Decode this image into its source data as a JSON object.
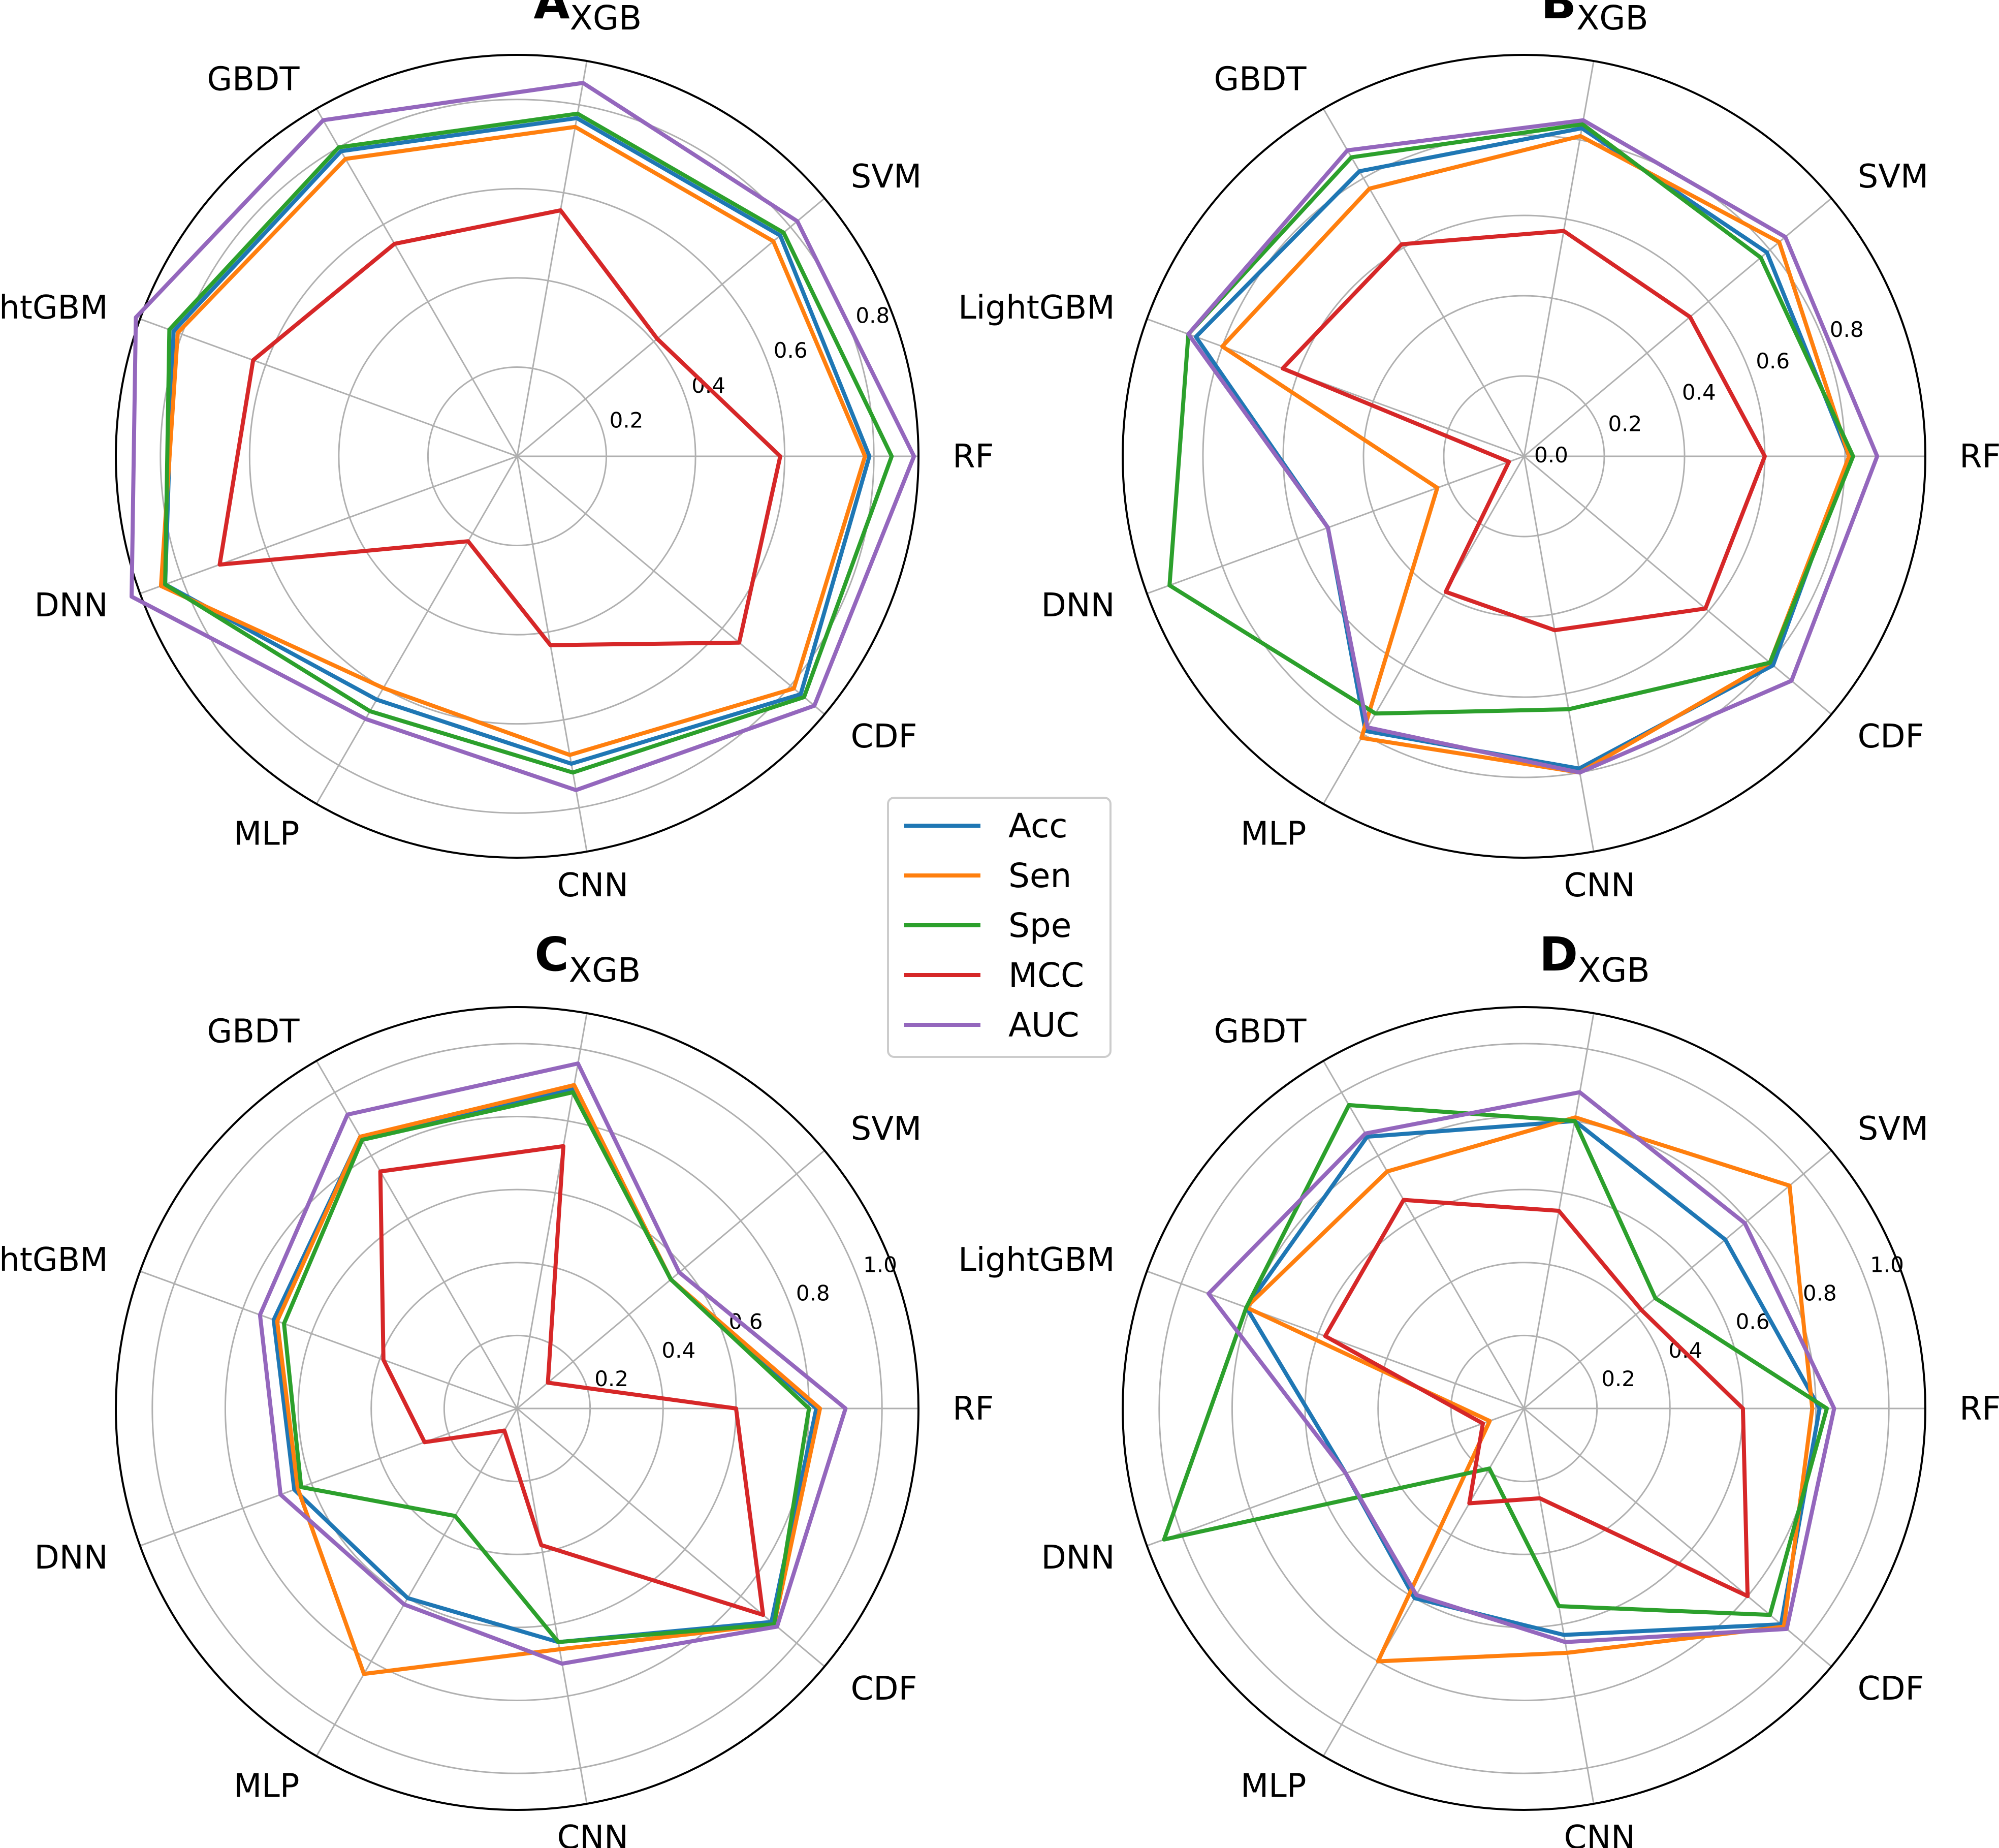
{
  "legend": [
    {
      "key": "Acc",
      "label": "Acc",
      "color": "#1f77b4"
    },
    {
      "key": "Sen",
      "label": "Sen",
      "color": "#ff7f0e"
    },
    {
      "key": "Spe",
      "label": "Spe",
      "color": "#2ca02c"
    },
    {
      "key": "MCC",
      "label": "MCC",
      "color": "#d62728"
    },
    {
      "key": "AUC",
      "label": "AUC",
      "color": "#9467bd"
    }
  ],
  "chart_data": [
    {
      "type": "radar",
      "title_letter": "A",
      "title_sub": "XGB",
      "axes": [
        "RF",
        "SVM",
        "XGB",
        "GBDT",
        "LightGBM",
        "DNN",
        "MLP",
        "CNN",
        "CDF"
      ],
      "rmin": 0.0,
      "rmax": 0.9,
      "rticks": [
        0.2,
        0.4,
        0.6,
        0.8
      ],
      "series": [
        {
          "name": "Acc",
          "values": [
            0.79,
            0.77,
            0.77,
            0.79,
            0.82,
            0.84,
            0.63,
            0.7,
            0.83
          ]
        },
        {
          "name": "Sen",
          "values": [
            0.78,
            0.75,
            0.75,
            0.77,
            0.81,
            0.85,
            0.6,
            0.68,
            0.81
          ]
        },
        {
          "name": "Spe",
          "values": [
            0.84,
            0.78,
            0.78,
            0.8,
            0.83,
            0.84,
            0.66,
            0.72,
            0.84
          ]
        },
        {
          "name": "MCC",
          "values": [
            0.59,
            0.41,
            0.56,
            0.55,
            0.63,
            0.71,
            0.22,
            0.43,
            0.65
          ]
        },
        {
          "name": "AUC",
          "values": [
            0.89,
            0.82,
            0.85,
            0.87,
            0.91,
            0.92,
            0.68,
            0.76,
            0.87
          ]
        }
      ]
    },
    {
      "type": "radar",
      "title_letter": "B",
      "title_sub": "XGB",
      "axes": [
        "RF",
        "SVM",
        "XGB",
        "GBDT",
        "LightGBM",
        "DNN",
        "MLP",
        "CNN",
        "CDF"
      ],
      "rmin": 0.0,
      "rmax": 1.0,
      "rticks": [
        0.0,
        0.2,
        0.4,
        0.6,
        0.8
      ],
      "series": [
        {
          "name": "Acc",
          "values": [
            0.81,
            0.79,
            0.83,
            0.82,
            0.87,
            0.52,
            0.79,
            0.79,
            0.81
          ]
        },
        {
          "name": "Sen",
          "values": [
            0.81,
            0.83,
            0.81,
            0.77,
            0.8,
            0.23,
            0.81,
            0.8,
            0.8
          ]
        },
        {
          "name": "Spe",
          "values": [
            0.82,
            0.77,
            0.84,
            0.86,
            0.89,
            0.94,
            0.74,
            0.64,
            0.8
          ]
        },
        {
          "name": "MCC",
          "values": [
            0.6,
            0.54,
            0.57,
            0.61,
            0.64,
            0.04,
            0.39,
            0.44,
            0.59
          ]
        },
        {
          "name": "AUC",
          "values": [
            0.88,
            0.85,
            0.85,
            0.88,
            0.89,
            0.52,
            0.78,
            0.8,
            0.87
          ]
        }
      ]
    },
    {
      "type": "radar",
      "title_letter": "C",
      "title_sub": "XGB",
      "axes": [
        "RF",
        "SVM",
        "XGB",
        "GBDT",
        "LightGBM",
        "DNN",
        "MLP",
        "CNN",
        "CDF"
      ],
      "rmin": 0.0,
      "rmax": 1.1,
      "rticks": [
        0.2,
        0.4,
        0.6,
        0.8,
        1.0
      ],
      "series": [
        {
          "name": "Acc",
          "values": [
            0.82,
            0.55,
            0.89,
            0.86,
            0.71,
            0.65,
            0.6,
            0.65,
            0.91
          ]
        },
        {
          "name": "Sen",
          "values": [
            0.83,
            0.55,
            0.9,
            0.86,
            0.7,
            0.64,
            0.84,
            0.67,
            0.92
          ]
        },
        {
          "name": "Spe",
          "values": [
            0.8,
            0.55,
            0.88,
            0.85,
            0.68,
            0.63,
            0.34,
            0.65,
            0.92
          ]
        },
        {
          "name": "MCC",
          "values": [
            0.6,
            0.11,
            0.73,
            0.75,
            0.39,
            0.27,
            0.07,
            0.38,
            0.88
          ]
        },
        {
          "name": "AUC",
          "values": [
            0.9,
            0.58,
            0.96,
            0.93,
            0.75,
            0.69,
            0.62,
            0.71,
            0.93
          ]
        }
      ]
    },
    {
      "type": "radar",
      "title_letter": "D",
      "title_sub": "XGB",
      "axes": [
        "RF",
        "SVM",
        "XGB",
        "GBDT",
        "LightGBM",
        "DNN",
        "MLP",
        "CNN",
        "CDF"
      ],
      "rmin": 0.0,
      "rmax": 1.1,
      "rticks": [
        0.2,
        0.4,
        0.6,
        0.8,
        1.0
      ],
      "series": [
        {
          "name": "Acc",
          "values": [
            0.81,
            0.72,
            0.8,
            0.86,
            0.81,
            0.52,
            0.6,
            0.63,
            0.92
          ]
        },
        {
          "name": "Sen",
          "values": [
            0.79,
            0.95,
            0.81,
            0.75,
            0.81,
            0.1,
            0.8,
            0.68,
            0.93
          ]
        },
        {
          "name": "Spe",
          "values": [
            0.83,
            0.47,
            0.8,
            0.96,
            0.81,
            1.05,
            0.19,
            0.55,
            0.88
          ]
        },
        {
          "name": "MCC",
          "values": [
            0.6,
            0.42,
            0.55,
            0.66,
            0.58,
            0.12,
            0.3,
            0.25,
            0.8
          ]
        },
        {
          "name": "AUC",
          "values": [
            0.85,
            0.79,
            0.88,
            0.87,
            0.92,
            0.52,
            0.59,
            0.65,
            0.94
          ]
        }
      ]
    }
  ]
}
